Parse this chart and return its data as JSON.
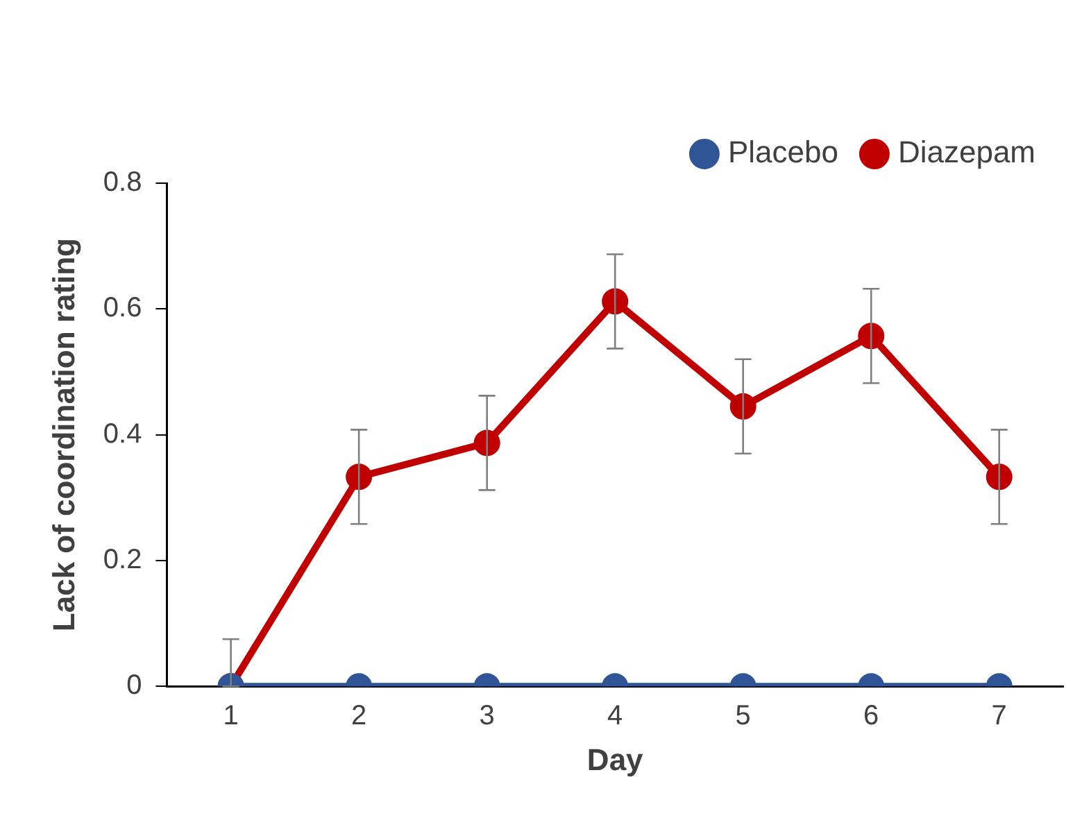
{
  "chart_data": {
    "type": "line",
    "xlabel": "Day",
    "ylabel": "Lack of coordination rating",
    "categories": [
      "1",
      "2",
      "3",
      "4",
      "5",
      "6",
      "7"
    ],
    "series": [
      {
        "name": "Placebo",
        "color": "#2f5597",
        "values": [
          0,
          0,
          0,
          0,
          0,
          0,
          0
        ]
      },
      {
        "name": "Diazepam",
        "color": "#c00000",
        "values": [
          0,
          0.333,
          0.387,
          0.612,
          0.445,
          0.557,
          0.333
        ],
        "errors": [
          [
            0,
            0.075
          ],
          [
            0.258,
            0.408
          ],
          [
            0.312,
            0.462
          ],
          [
            0.537,
            0.687
          ],
          [
            0.37,
            0.52
          ],
          [
            0.482,
            0.632
          ],
          [
            0.258,
            0.408
          ]
        ]
      }
    ],
    "ylim": [
      0,
      0.8
    ],
    "yticks": [
      0,
      {
        "value": 0.2,
        "label": "0.2"
      },
      {
        "value": 0.4,
        "label": "0.4"
      },
      {
        "value": 0.6,
        "label": "0.6"
      },
      {
        "value": 0.8,
        "label": "0.8"
      }
    ],
    "grid": false,
    "legend": "top right",
    "marker": "circle",
    "line_style": "solid"
  }
}
